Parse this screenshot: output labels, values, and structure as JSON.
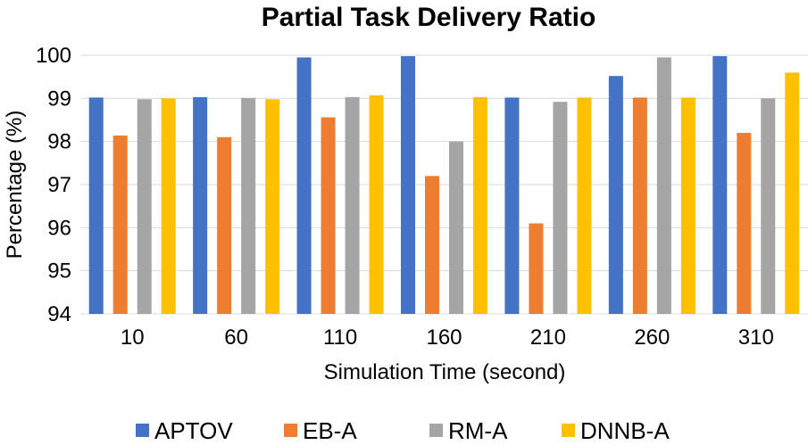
{
  "chart_data": {
    "type": "bar",
    "title": "Partial Task Delivery Ratio",
    "xlabel": "Simulation Time (second)",
    "ylabel": "Percentage (%)",
    "ylim": [
      94,
      100
    ],
    "yticks": [
      94,
      95,
      96,
      97,
      98,
      99,
      100
    ],
    "grid": true,
    "legend_position": "bottom",
    "categories": [
      "10",
      "60",
      "110",
      "160",
      "210",
      "260",
      "310"
    ],
    "series": [
      {
        "name": "APTOV",
        "color": "#4472C4",
        "values": [
          99.02,
          99.03,
          99.95,
          99.98,
          99.02,
          99.52,
          99.98
        ]
      },
      {
        "name": "EB-A",
        "color": "#ED7D31",
        "values": [
          98.14,
          98.1,
          98.56,
          97.2,
          96.1,
          99.02,
          98.2
        ]
      },
      {
        "name": "RM-A",
        "color": "#A5A5A5",
        "values": [
          98.98,
          99.01,
          99.03,
          98.0,
          98.92,
          99.95,
          99.0
        ]
      },
      {
        "name": "DNNB-A",
        "color": "#FFC000",
        "values": [
          99.0,
          98.98,
          99.07,
          99.03,
          99.02,
          99.02,
          99.6
        ]
      }
    ]
  }
}
